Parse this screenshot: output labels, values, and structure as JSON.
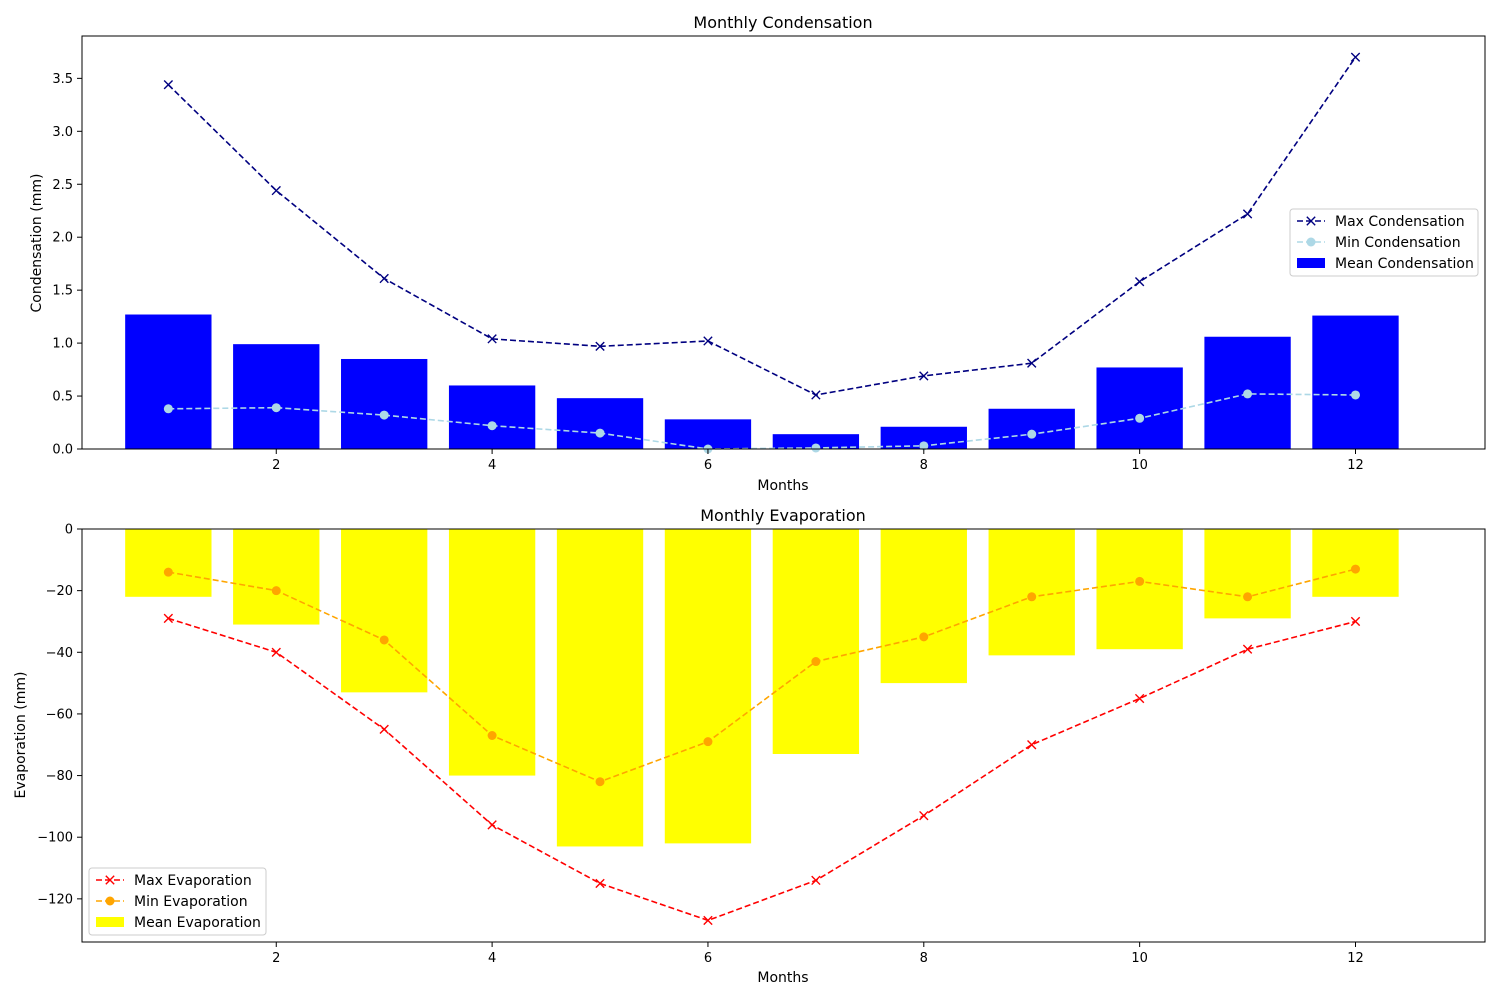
{
  "chart_data": [
    {
      "type": "bar",
      "title": "Monthly Condensation",
      "xlabel": "Months",
      "ylabel": "Condensation (mm)",
      "x": [
        1,
        2,
        3,
        4,
        5,
        6,
        7,
        8,
        9,
        10,
        11,
        12
      ],
      "xlim": [
        0.2,
        13.2
      ],
      "ylim": [
        0,
        3.9
      ],
      "xticks": [
        2,
        4,
        6,
        8,
        10,
        12
      ],
      "yticks": [
        0.0,
        0.5,
        1.0,
        1.5,
        2.0,
        2.5,
        3.0,
        3.5
      ],
      "ytick_labels": [
        "0.0",
        "0.5",
        "1.0",
        "1.5",
        "2.0",
        "2.5",
        "3.0",
        "3.5"
      ],
      "legend_position": "center-right",
      "series": [
        {
          "name": "Max Condensation",
          "kind": "line",
          "marker": "x",
          "style": "dashed",
          "color": "#000080",
          "values": [
            3.44,
            2.44,
            1.61,
            1.04,
            0.97,
            1.02,
            0.51,
            0.69,
            0.81,
            1.58,
            2.22,
            3.7
          ]
        },
        {
          "name": "Min Condensation",
          "kind": "line",
          "marker": "circle",
          "style": "dashed",
          "color": "#add8e6",
          "values": [
            0.38,
            0.39,
            0.32,
            0.22,
            0.15,
            0.0,
            0.01,
            0.03,
            0.14,
            0.29,
            0.52,
            0.51
          ]
        },
        {
          "name": "Mean Condensation",
          "kind": "bar",
          "color": "#0000ff",
          "values": [
            1.27,
            0.99,
            0.85,
            0.6,
            0.48,
            0.28,
            0.14,
            0.21,
            0.38,
            0.77,
            1.06,
            1.26
          ]
        }
      ]
    },
    {
      "type": "bar",
      "title": "Monthly Evaporation",
      "xlabel": "Months",
      "ylabel": "Evaporation (mm)",
      "x": [
        1,
        2,
        3,
        4,
        5,
        6,
        7,
        8,
        9,
        10,
        11,
        12
      ],
      "xlim": [
        0.2,
        13.2
      ],
      "ylim": [
        -134,
        0
      ],
      "xticks": [
        2,
        4,
        6,
        8,
        10,
        12
      ],
      "yticks": [
        0,
        -20,
        -40,
        -60,
        -80,
        -100,
        -120
      ],
      "ytick_labels": [
        "0",
        "−20",
        "−40",
        "−60",
        "−80",
        "−100",
        "−120"
      ],
      "legend_position": "bottom-left",
      "series": [
        {
          "name": "Max Evaporation",
          "kind": "line",
          "marker": "x",
          "style": "dashed",
          "color": "#ff0000",
          "values": [
            -29,
            -40,
            -65,
            -96,
            -115,
            -127,
            -114,
            -93,
            -70,
            -55,
            -39,
            -30
          ]
        },
        {
          "name": "Min Evaporation",
          "kind": "line",
          "marker": "circle",
          "style": "dashed",
          "color": "#ffa500",
          "values": [
            -14,
            -20,
            -36,
            -67,
            -82,
            -69,
            -43,
            -35,
            -22,
            -17,
            -22,
            -13
          ]
        },
        {
          "name": "Mean Evaporation",
          "kind": "bar",
          "color": "#ffff00",
          "values": [
            -22,
            -31,
            -53,
            -80,
            -103,
            -102,
            -73,
            -50,
            -41,
            -39,
            -29,
            -22
          ]
        }
      ]
    }
  ]
}
